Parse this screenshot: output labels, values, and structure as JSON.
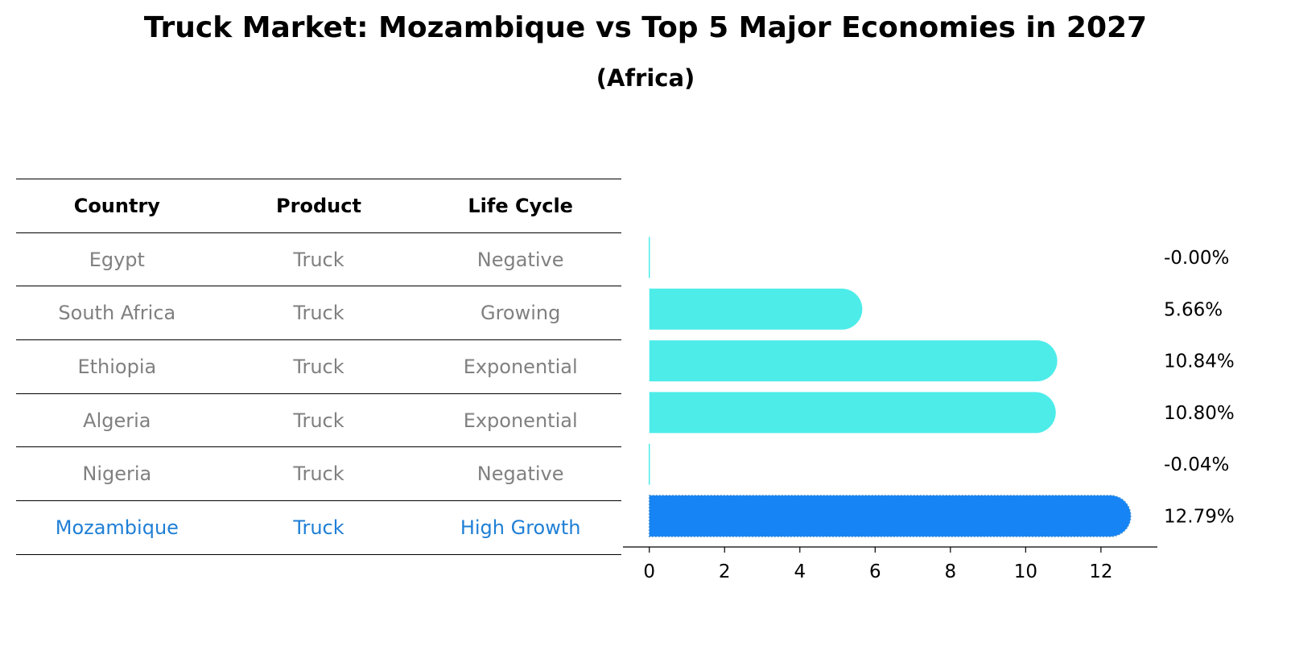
{
  "title": "Truck Market: Mozambique vs Top 5 Major Economies in 2027",
  "subtitle": "(Africa)",
  "table": {
    "headers": [
      "Country",
      "Product",
      "Life Cycle"
    ],
    "rows": [
      {
        "country": "Egypt",
        "product": "Truck",
        "life_cycle": "Negative"
      },
      {
        "country": "South Africa",
        "product": "Truck",
        "life_cycle": "Growing"
      },
      {
        "country": "Ethiopia",
        "product": "Truck",
        "life_cycle": "Exponential"
      },
      {
        "country": "Algeria",
        "product": "Truck",
        "life_cycle": "Exponential"
      },
      {
        "country": "Nigeria",
        "product": "Truck",
        "life_cycle": "Negative"
      },
      {
        "country": "Mozambique",
        "product": "Truck",
        "life_cycle": "High Growth"
      }
    ],
    "highlight_row": 5,
    "colors": {
      "normal": "#808080",
      "highlight": "#1f7fd6"
    }
  },
  "chart_data": {
    "type": "bar",
    "orientation": "horizontal",
    "categories": [
      "Egypt",
      "South Africa",
      "Ethiopia",
      "Algeria",
      "Nigeria",
      "Mozambique"
    ],
    "values": [
      -0.0,
      5.66,
      10.84,
      10.8,
      -0.04,
      12.79
    ],
    "value_labels": [
      "-0.00%",
      "5.66%",
      "10.84%",
      "10.80%",
      "-0.04%",
      "12.79%"
    ],
    "colors": [
      "#4dece9",
      "#4dece9",
      "#4dece9",
      "#4dece9",
      "#4dece9",
      "#1684f4"
    ],
    "xticks": [
      0,
      2,
      4,
      6,
      8,
      10,
      12
    ],
    "xlim": [
      -0.7,
      13.5
    ],
    "xlabel": "",
    "ylabel": "",
    "highlight": "Mozambique"
  }
}
